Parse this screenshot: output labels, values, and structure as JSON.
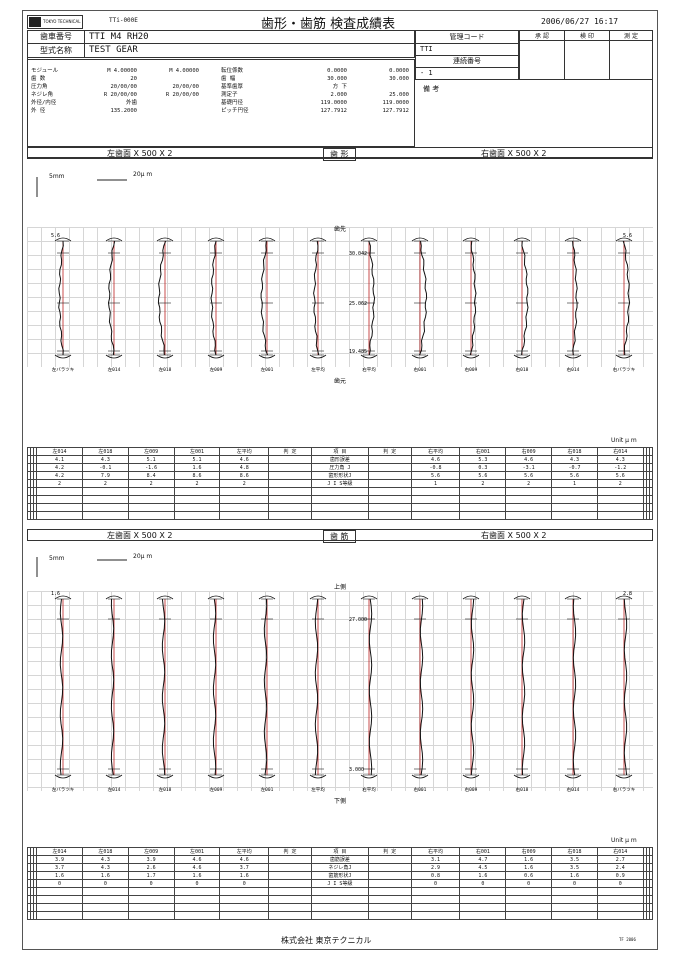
{
  "header": {
    "logo_text": "TOKYO TECHNICAL",
    "doc_code": "TTi-000E",
    "title": "歯形・歯筋 検査成績表",
    "datetime": "2006/06/27 16:17"
  },
  "info": {
    "gear_no_label": "歯車番号",
    "gear_no_value": "TTI M4 RH20",
    "model_label": "型式名称",
    "model_value": "TEST GEAR",
    "mgmt_code_label": "管理コード",
    "mgmt_code_value": "TTI",
    "serial_label": "連続番号",
    "serial_value": "- 1",
    "remarks_label": "備 考",
    "approval_headers": [
      "承 認",
      "検 印",
      "測 定"
    ]
  },
  "specs": {
    "left_labels": [
      "モジュール",
      "歯 数",
      "圧力角",
      "ネジレ角",
      "外径/内径",
      "外 径"
    ],
    "left_col1": [
      "M 4.00000",
      "20",
      "20/00/00",
      "R 20/00/00",
      "外歯",
      "135.2000"
    ],
    "left_col2": [
      "M 4.00000",
      "",
      "20/00/00",
      "R 20/00/00",
      "",
      ""
    ],
    "mid_labels": [
      "転位係数",
      "歯 幅",
      "基準歯厚",
      "測定子",
      "基礎円径",
      "ピッチ円径"
    ],
    "mid_col1": [
      "0.0000",
      "30.000",
      "方 下",
      "2.000",
      "119.0000",
      "127.7912"
    ],
    "mid_col2": [
      "0.0000",
      "30.000",
      "",
      "25.000",
      "119.0000",
      "127.7912"
    ]
  },
  "profile_section": {
    "left_label": "左歯面 X 500 X 2",
    "center_label": "歯 形",
    "right_label": "右歯面 X 500 X 2",
    "scale_v": "5mm",
    "scale_h": "20μ m",
    "top_label": "歯先",
    "bottom_label": "歯元",
    "level_labels": [
      "30.042",
      "25.062",
      "19.485"
    ],
    "edge_value_left": "5.6",
    "edge_value_right": "5.6",
    "tooth_labels": [
      "左バラツキ",
      "左014",
      "左018",
      "左009",
      "左001",
      "左平均",
      "右平均",
      "右001",
      "右009",
      "右018",
      "右014",
      "右バラツキ"
    ],
    "unit": "Unit μ m"
  },
  "profile_table": {
    "left_headers": [
      "左014",
      "左018",
      "左009",
      "左001",
      "左平均",
      "判 定"
    ],
    "center_header": "項 目",
    "right_headers": [
      "判 定",
      "右平均",
      "右001",
      "右009",
      "右018",
      "右014"
    ],
    "items": [
      "歯形誤差",
      "圧力角 J",
      "歯形形状J",
      "J I S等級"
    ],
    "left_values": [
      [
        "4.1",
        "4.3",
        "5.1",
        "5.1",
        "4.6",
        ""
      ],
      [
        "4.2",
        "-0.1",
        "-1.6",
        "1.6",
        "4.8",
        ""
      ],
      [
        "4.2",
        "7.9",
        "8.4",
        "8.6",
        "8.6",
        ""
      ],
      [
        "2",
        "2",
        "2",
        "2",
        "2",
        ""
      ]
    ],
    "right_values": [
      [
        "",
        "4.6",
        "5.3",
        "4.6",
        "4.3",
        "4.3"
      ],
      [
        "",
        "-0.8",
        "0.3",
        "-3.1",
        "-0.7",
        "-1.2"
      ],
      [
        "",
        "5.6",
        "5.6",
        "5.6",
        "5.6",
        "5.6"
      ],
      [
        "",
        "1",
        "2",
        "2",
        "1",
        "2"
      ]
    ]
  },
  "lead_section": {
    "left_label": "左歯面 X 500 X 2",
    "center_label": "歯 筋",
    "right_label": "右歯面 X 500 X 2",
    "scale_v": "5mm",
    "scale_h": "20μ m",
    "top_label": "上側",
    "bottom_label": "下側",
    "level_labels": [
      "27.000",
      "3.000"
    ],
    "edge_value_left": "1.6",
    "edge_value_right": "2.8",
    "tooth_labels": [
      "左バラツキ",
      "左014",
      "左018",
      "左009",
      "左001",
      "左平均",
      "右平均",
      "右001",
      "右009",
      "右018",
      "右014",
      "右バラツキ"
    ],
    "unit": "Unit μ m"
  },
  "lead_table": {
    "left_headers": [
      "左014",
      "左018",
      "左009",
      "左001",
      "左平均",
      "判 定"
    ],
    "center_header": "項 目",
    "right_headers": [
      "判 定",
      "右平均",
      "右001",
      "右009",
      "右018",
      "右014"
    ],
    "items": [
      "歯筋誤差",
      "ネジレ角J",
      "歯筋形状J",
      "J I S等級"
    ],
    "left_values": [
      [
        "3.9",
        "4.3",
        "3.9",
        "4.6",
        "4.6",
        ""
      ],
      [
        "3.7",
        "4.3",
        "2.6",
        "4.6",
        "3.7",
        ""
      ],
      [
        "1.6",
        "1.6",
        "1.7",
        "1.6",
        "1.6",
        ""
      ],
      [
        "0",
        "0",
        "0",
        "0",
        "0",
        ""
      ]
    ],
    "right_values": [
      [
        "",
        "3.1",
        "4.7",
        "1.6",
        "3.5",
        "2.7"
      ],
      [
        "",
        "2.9",
        "4.5",
        "1.6",
        "3.5",
        "2.4"
      ],
      [
        "",
        "0.8",
        "1.6",
        "0.6",
        "1.6",
        "0.9"
      ],
      [
        "",
        "0",
        "0",
        "0",
        "0",
        "0"
      ]
    ]
  },
  "footer": {
    "company": "株式会社 東京テクニカル",
    "code": "TF 2006"
  }
}
